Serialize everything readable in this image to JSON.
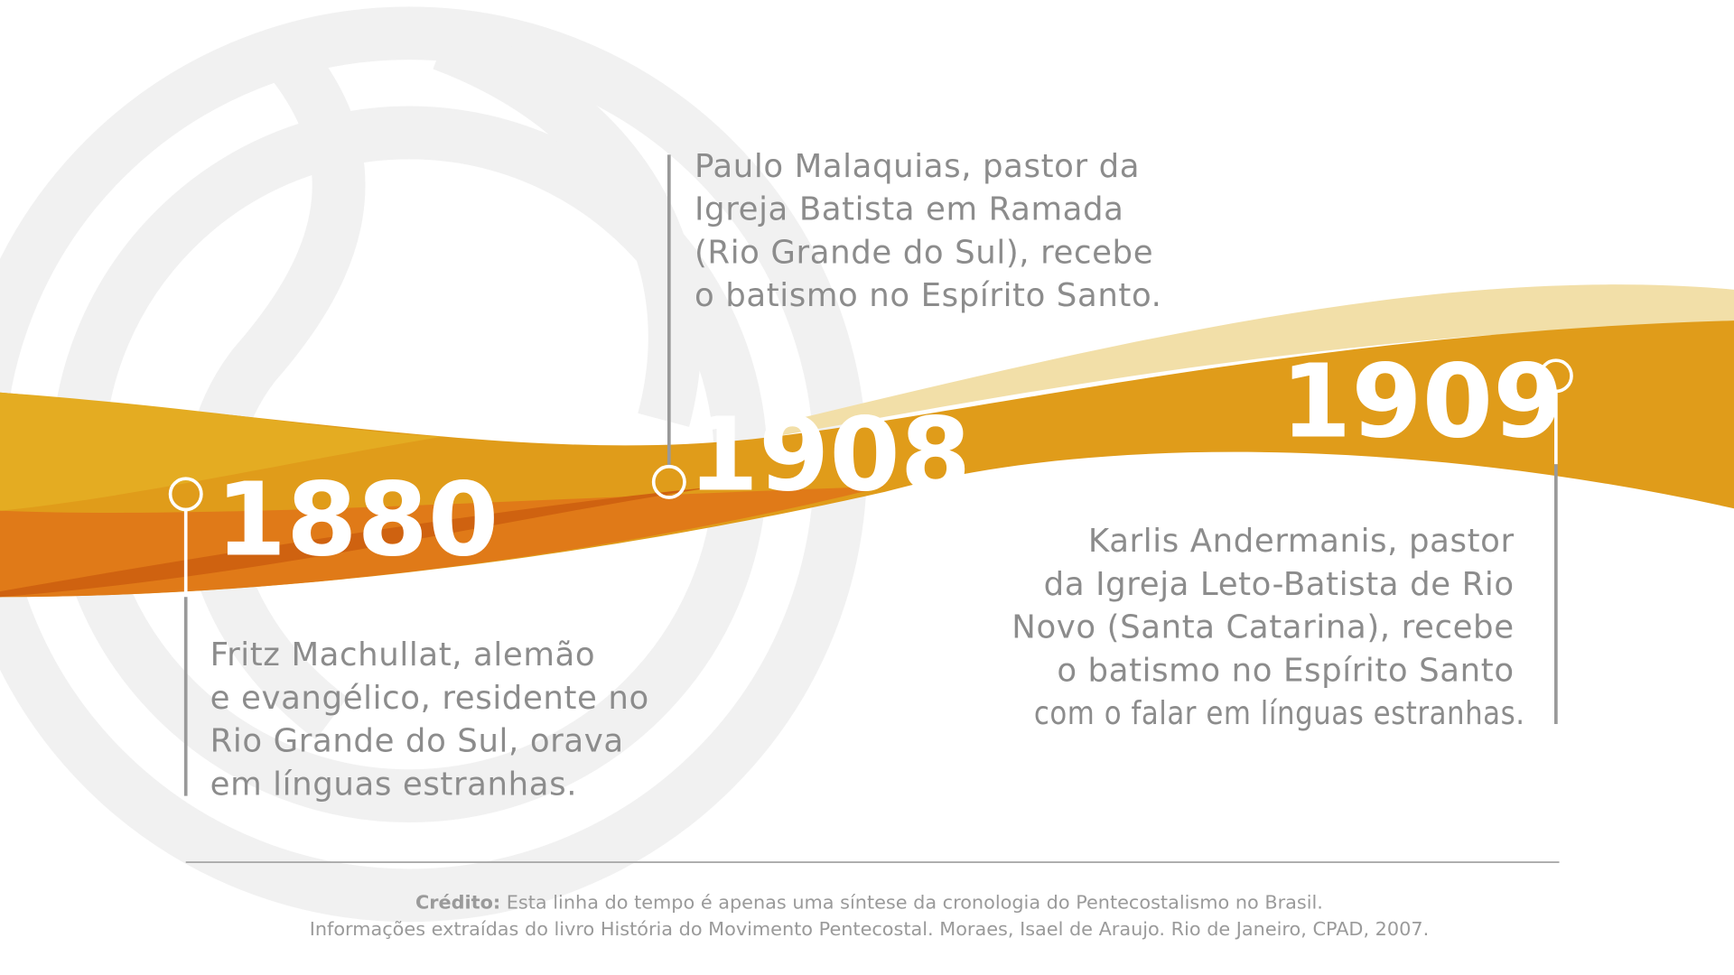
{
  "events": [
    {
      "year": "1880",
      "lines": [
        "Fritz Machullat, alemão",
        "e evangélico, residente no",
        "Rio Grande do Sul, orava",
        "em línguas estranhas."
      ]
    },
    {
      "year": "1908",
      "lines": [
        "Paulo Malaquias, pastor da",
        "Igreja Batista em Ramada",
        "(Rio Grande do Sul), recebe",
        "o batismo no Espírito Santo."
      ]
    },
    {
      "year": "1909",
      "lines": [
        "Karlis Andermanis, pastor",
        "da Igreja Leto-Batista de Rio",
        "Novo (Santa Catarina), recebe",
        "o batismo no Espírito Santo",
        "com o falar em línguas estranhas."
      ]
    }
  ],
  "credit": {
    "label": "Crédito:",
    "line1": "Esta linha do tempo é apenas uma síntese da cronologia do Pentecostalismo no Brasil.",
    "line2": "Informações extraídas do livro História do Movimento Pentecostal. Moraes, Isael de Araujo. Rio de Janeiro, CPAD, 2007."
  }
}
